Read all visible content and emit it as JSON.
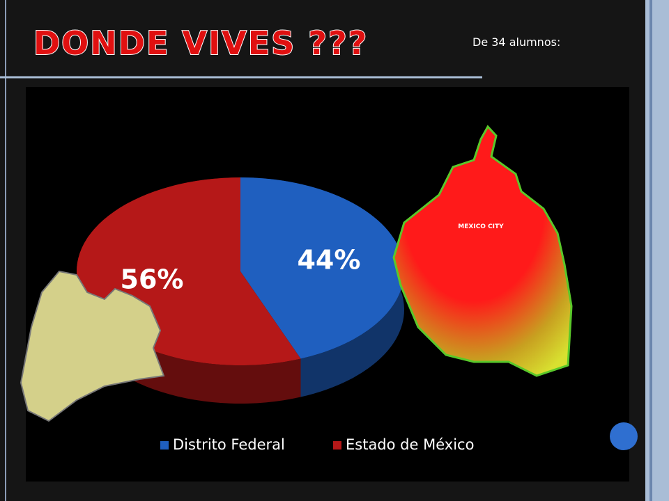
{
  "chart_data": {
    "type": "pie",
    "title": "DONDE VIVES ???",
    "subtitle": "De 34 alumnos:",
    "categories": [
      "Distrito Federal",
      "Estado de México"
    ],
    "values": [
      44,
      56
    ],
    "value_labels": [
      "44%",
      "56%"
    ],
    "colors": [
      "#1f5fbf",
      "#b51818"
    ],
    "annotations": [
      "MEXICO CITY"
    ]
  }
}
